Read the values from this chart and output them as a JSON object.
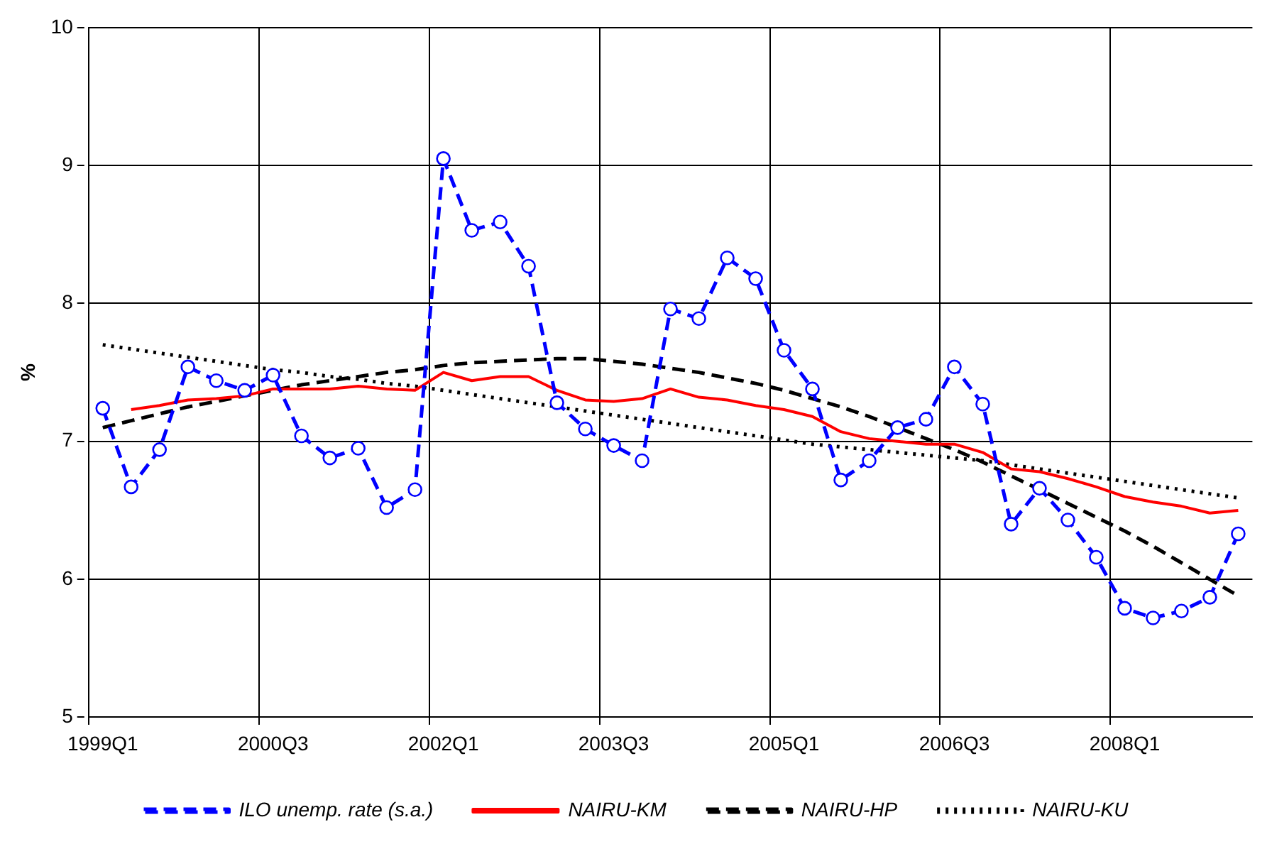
{
  "chart_data": {
    "type": "line",
    "ylabel": "%",
    "categories": [
      "1999Q1",
      null,
      null,
      null,
      null,
      null,
      "2000Q3",
      null,
      null,
      null,
      null,
      null,
      "2002Q1",
      null,
      null,
      null,
      null,
      null,
      "2003Q3",
      null,
      null,
      null,
      null,
      null,
      "2005Q1",
      null,
      null,
      null,
      null,
      null,
      "2006Q3",
      null,
      null,
      null,
      null,
      null,
      "2008Q1",
      null,
      null,
      null,
      null
    ],
    "series": [
      {
        "name": "ILO unemp. rate (s.a.)",
        "color": "#0000ff",
        "line_style": "dashed",
        "marker": "circle",
        "values": [
          7.24,
          6.67,
          6.94,
          7.54,
          7.44,
          7.37,
          7.48,
          7.04,
          6.88,
          6.95,
          6.52,
          6.65,
          9.05,
          8.53,
          8.59,
          8.27,
          7.28,
          7.09,
          6.97,
          6.86,
          7.96,
          7.89,
          8.33,
          8.18,
          7.66,
          7.38,
          6.72,
          6.86,
          7.1,
          7.16,
          7.54,
          7.27,
          6.4,
          6.66,
          6.43,
          6.16,
          5.79,
          5.72,
          5.77,
          5.87,
          6.33
        ]
      },
      {
        "name": "NAIRU-KM",
        "color": "#ff0000",
        "line_style": "solid",
        "marker": "none",
        "values": [
          null,
          7.23,
          7.26,
          7.3,
          7.31,
          7.33,
          7.38,
          7.38,
          7.38,
          7.4,
          7.38,
          7.37,
          7.5,
          7.44,
          7.47,
          7.47,
          7.37,
          7.3,
          7.29,
          7.31,
          7.38,
          7.32,
          7.3,
          7.26,
          7.23,
          7.18,
          7.07,
          7.02,
          7.0,
          6.98,
          6.98,
          6.92,
          6.8,
          6.78,
          6.73,
          6.67,
          6.6,
          6.56,
          6.53,
          6.48,
          6.5
        ]
      },
      {
        "name": "NAIRU-HP",
        "color": "#000000",
        "line_style": "dashed",
        "marker": "none",
        "values": [
          7.1,
          7.15,
          7.2,
          7.25,
          7.29,
          7.33,
          7.37,
          7.41,
          7.44,
          7.47,
          7.5,
          7.52,
          7.55,
          7.57,
          7.58,
          7.59,
          7.6,
          7.6,
          7.58,
          7.56,
          7.53,
          7.5,
          7.46,
          7.42,
          7.37,
          7.31,
          7.25,
          7.18,
          7.1,
          7.02,
          6.94,
          6.85,
          6.75,
          6.65,
          6.55,
          6.45,
          6.35,
          6.24,
          6.12,
          6.0,
          5.88
        ]
      },
      {
        "name": "NAIRU-KU",
        "color": "#000000",
        "line_style": "dotted",
        "marker": "none",
        "values": [
          7.7,
          7.67,
          7.64,
          7.61,
          7.58,
          7.55,
          7.52,
          7.5,
          7.47,
          7.45,
          7.42,
          7.4,
          7.37,
          7.34,
          7.31,
          7.28,
          7.25,
          7.22,
          7.19,
          7.16,
          7.13,
          7.1,
          7.07,
          7.04,
          7.01,
          6.98,
          6.96,
          6.94,
          6.92,
          6.9,
          6.88,
          6.86,
          6.83,
          6.8,
          6.77,
          6.74,
          6.71,
          6.68,
          6.65,
          6.62,
          6.59
        ]
      }
    ],
    "ylim": [
      5,
      10
    ],
    "yticks": [
      5,
      6,
      7,
      8,
      9,
      10
    ],
    "grid": true,
    "legend": "bottom"
  }
}
